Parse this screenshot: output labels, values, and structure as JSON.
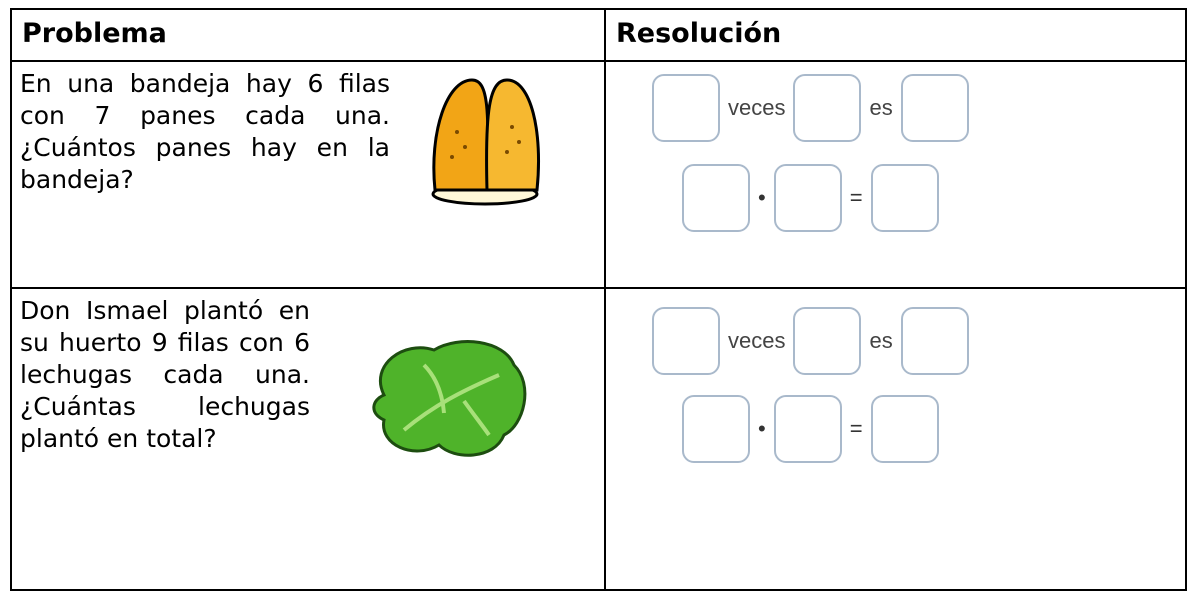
{
  "table": {
    "headers": [
      "Problema",
      "Resolución"
    ],
    "rows": [
      {
        "problem": "En una bandeja hay 6 filas con 7 panes cada una.  ¿Cuántos panes hay en la bandeja?",
        "words": [
          "veces",
          "es"
        ],
        "operators": [
          "•",
          "="
        ]
      },
      {
        "problem": "Don Ismael plantó en su huerto 9 filas con 6 lechugas cada una. ¿Cuántas lechugas plantó en total?",
        "words": [
          "veces",
          "es"
        ],
        "operators": [
          "•",
          "="
        ]
      }
    ]
  }
}
